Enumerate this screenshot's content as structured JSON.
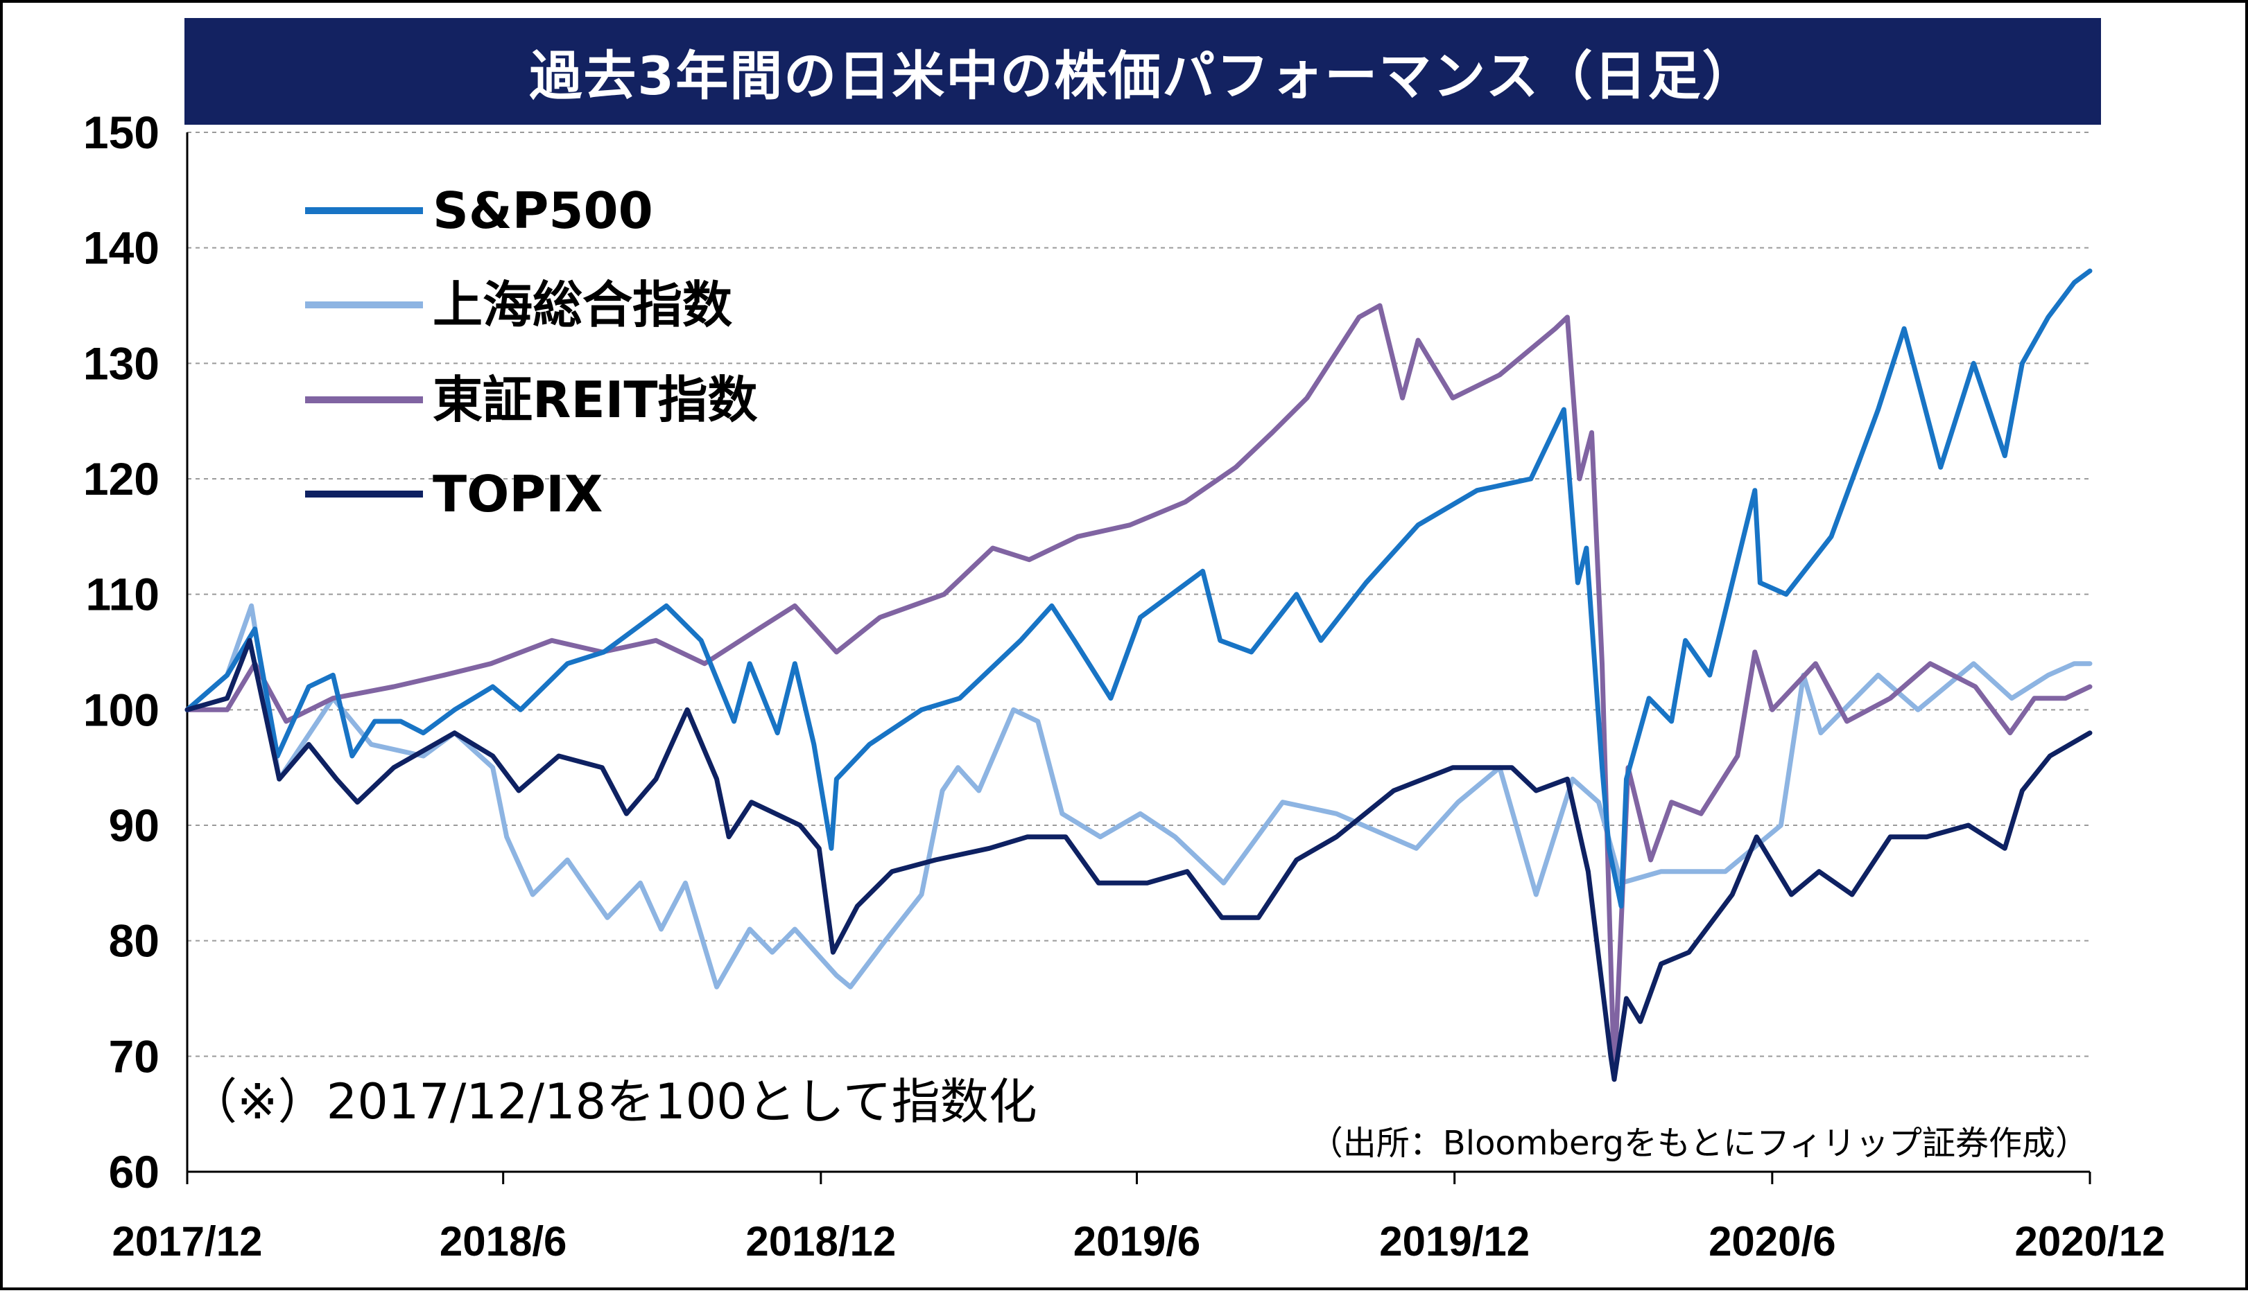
{
  "chart_data": {
    "type": "line",
    "title": "過去3年間の日米中の株価パフォーマンス（日足）",
    "xlabel": "",
    "ylabel": "",
    "x_ticks": [
      "2017/12",
      "2018/6",
      "2018/12",
      "2019/6",
      "2019/12",
      "2020/6",
      "2020/12"
    ],
    "y_ticks": [
      60,
      70,
      80,
      90,
      100,
      110,
      120,
      130,
      140,
      150
    ],
    "xlim": [
      "2017/12/18",
      "2020/12/18"
    ],
    "ylim": [
      60,
      150
    ],
    "grid": true,
    "legend_position": "top-left",
    "note": "（※）2017/12/18を100として指数化",
    "source": "（出所：Bloombergをもとにフィリップ証券作成）",
    "series": [
      {
        "name": "S&P500",
        "color": "#1874C5",
        "points": [
          [
            "2017/12/18",
            100
          ],
          [
            "2018/01/10",
            103
          ],
          [
            "2018/01/26",
            107
          ],
          [
            "2018/02/08",
            96
          ],
          [
            "2018/02/26",
            102
          ],
          [
            "2018/03/12",
            103
          ],
          [
            "2018/03/23",
            96
          ],
          [
            "2018/04/05",
            99
          ],
          [
            "2018/04/20",
            99
          ],
          [
            "2018/05/03",
            98
          ],
          [
            "2018/05/21",
            100
          ],
          [
            "2018/06/12",
            102
          ],
          [
            "2018/06/28",
            100
          ],
          [
            "2018/07/25",
            104
          ],
          [
            "2018/08/15",
            105
          ],
          [
            "2018/09/20",
            109
          ],
          [
            "2018/10/10",
            106
          ],
          [
            "2018/10/29",
            99
          ],
          [
            "2018/11/07",
            104
          ],
          [
            "2018/11/23",
            98
          ],
          [
            "2018/12/03",
            104
          ],
          [
            "2018/12/14",
            97
          ],
          [
            "2018/12/24",
            88
          ],
          [
            "2018/12/27",
            94
          ],
          [
            "2019/01/15",
            97
          ],
          [
            "2019/02/14",
            100
          ],
          [
            "2019/03/08",
            101
          ],
          [
            "2019/04/12",
            106
          ],
          [
            "2019/04/30",
            109
          ],
          [
            "2019/05/13",
            106
          ],
          [
            "2019/06/03",
            101
          ],
          [
            "2019/06/20",
            108
          ],
          [
            "2019/07/26",
            112
          ],
          [
            "2019/08/05",
            106
          ],
          [
            "2019/08/23",
            105
          ],
          [
            "2019/09/18",
            110
          ],
          [
            "2019/10/02",
            106
          ],
          [
            "2019/10/28",
            111
          ],
          [
            "2019/11/27",
            116
          ],
          [
            "2019/12/31",
            119
          ],
          [
            "2020/01/31",
            120
          ],
          [
            "2020/02/19",
            126
          ],
          [
            "2020/02/27",
            111
          ],
          [
            "2020/03/03",
            114
          ],
          [
            "2020/03/12",
            95
          ],
          [
            "2020/03/16",
            88
          ],
          [
            "2020/03/23",
            83
          ],
          [
            "2020/03/26",
            94
          ],
          [
            "2020/04/08",
            101
          ],
          [
            "2020/04/21",
            99
          ],
          [
            "2020/04/29",
            106
          ],
          [
            "2020/05/13",
            103
          ],
          [
            "2020/06/08",
            119
          ],
          [
            "2020/06/11",
            111
          ],
          [
            "2020/06/26",
            110
          ],
          [
            "2020/07/22",
            115
          ],
          [
            "2020/08/18",
            126
          ],
          [
            "2020/09/02",
            133
          ],
          [
            "2020/09/23",
            121
          ],
          [
            "2020/10/12",
            130
          ],
          [
            "2020/10/30",
            122
          ],
          [
            "2020/11/09",
            130
          ],
          [
            "2020/11/24",
            134
          ],
          [
            "2020/12/09",
            137
          ],
          [
            "2020/12/18",
            138
          ]
        ]
      },
      {
        "name": "上海総合指数",
        "color": "#8DB4E2",
        "points": [
          [
            "2017/12/18",
            100
          ],
          [
            "2018/01/10",
            103
          ],
          [
            "2018/01/24",
            109
          ],
          [
            "2018/02/09",
            94
          ],
          [
            "2018/03/12",
            101
          ],
          [
            "2018/04/03",
            97
          ],
          [
            "2018/05/03",
            96
          ],
          [
            "2018/05/21",
            98
          ],
          [
            "2018/06/12",
            95
          ],
          [
            "2018/06/20",
            89
          ],
          [
            "2018/07/05",
            84
          ],
          [
            "2018/07/25",
            87
          ],
          [
            "2018/08/17",
            82
          ],
          [
            "2018/09/05",
            85
          ],
          [
            "2018/09/17",
            81
          ],
          [
            "2018/10/01",
            85
          ],
          [
            "2018/10/19",
            76
          ],
          [
            "2018/11/07",
            81
          ],
          [
            "2018/11/20",
            79
          ],
          [
            "2018/12/03",
            81
          ],
          [
            "2018/12/27",
            77
          ],
          [
            "2019/01/04",
            76
          ],
          [
            "2019/01/24",
            80
          ],
          [
            "2019/02/14",
            84
          ],
          [
            "2019/02/26",
            93
          ],
          [
            "2019/03/07",
            95
          ],
          [
            "2019/03/19",
            93
          ],
          [
            "2019/04/08",
            100
          ],
          [
            "2019/04/22",
            99
          ],
          [
            "2019/05/06",
            91
          ],
          [
            "2019/05/28",
            89
          ],
          [
            "2019/06/20",
            91
          ],
          [
            "2019/07/10",
            89
          ],
          [
            "2019/08/07",
            85
          ],
          [
            "2019/09/10",
            92
          ],
          [
            "2019/10/11",
            91
          ],
          [
            "2019/11/26",
            88
          ],
          [
            "2019/12/20",
            92
          ],
          [
            "2020/01/13",
            95
          ],
          [
            "2020/02/03",
            84
          ],
          [
            "2020/02/24",
            94
          ],
          [
            "2020/03/10",
            92
          ],
          [
            "2020/03/23",
            85
          ],
          [
            "2020/04/15",
            86
          ],
          [
            "2020/05/22",
            86
          ],
          [
            "2020/06/23",
            90
          ],
          [
            "2020/07/06",
            103
          ],
          [
            "2020/07/16",
            98
          ],
          [
            "2020/08/18",
            103
          ],
          [
            "2020/09/10",
            100
          ],
          [
            "2020/10/12",
            104
          ],
          [
            "2020/11/03",
            101
          ],
          [
            "2020/11/24",
            103
          ],
          [
            "2020/12/09",
            104
          ],
          [
            "2020/12/18",
            104
          ]
        ]
      },
      {
        "name": "東証REIT指数",
        "color": "#8064A2",
        "points": [
          [
            "2017/12/18",
            100
          ],
          [
            "2018/01/10",
            100
          ],
          [
            "2018/01/26",
            104
          ],
          [
            "2018/02/13",
            99
          ],
          [
            "2018/03/12",
            101
          ],
          [
            "2018/04/16",
            102
          ],
          [
            "2018/05/15",
            103
          ],
          [
            "2018/06/11",
            104
          ],
          [
            "2018/07/16",
            106
          ],
          [
            "2018/08/14",
            105
          ],
          [
            "2018/09/14",
            106
          ],
          [
            "2018/10/12",
            104
          ],
          [
            "2018/11/12",
            107
          ],
          [
            "2018/12/03",
            109
          ],
          [
            "2018/12/27",
            105
          ],
          [
            "2019/01/21",
            108
          ],
          [
            "2019/02/27",
            110
          ],
          [
            "2019/03/27",
            114
          ],
          [
            "2019/04/17",
            113
          ],
          [
            "2019/05/15",
            115
          ],
          [
            "2019/06/14",
            116
          ],
          [
            "2019/07/16",
            118
          ],
          [
            "2019/08/14",
            121
          ],
          [
            "2019/09/04",
            124
          ],
          [
            "2019/09/24",
            127
          ],
          [
            "2019/10/24",
            134
          ],
          [
            "2019/11/05",
            135
          ],
          [
            "2019/11/18",
            127
          ],
          [
            "2019/11/27",
            132
          ],
          [
            "2019/12/17",
            127
          ],
          [
            "2020/01/13",
            129
          ],
          [
            "2020/02/14",
            133
          ],
          [
            "2020/02/21",
            134
          ],
          [
            "2020/02/28",
            120
          ],
          [
            "2020/03/06",
            124
          ],
          [
            "2020/03/12",
            104
          ],
          [
            "2020/03/19",
            68
          ],
          [
            "2020/03/27",
            95
          ],
          [
            "2020/04/09",
            87
          ],
          [
            "2020/04/21",
            92
          ],
          [
            "2020/05/08",
            91
          ],
          [
            "2020/05/29",
            96
          ],
          [
            "2020/06/08",
            105
          ],
          [
            "2020/06/18",
            100
          ],
          [
            "2020/07/13",
            104
          ],
          [
            "2020/07/31",
            99
          ],
          [
            "2020/08/25",
            101
          ],
          [
            "2020/09/17",
            104
          ],
          [
            "2020/10/13",
            102
          ],
          [
            "2020/11/02",
            98
          ],
          [
            "2020/11/16",
            101
          ],
          [
            "2020/12/04",
            101
          ],
          [
            "2020/12/18",
            102
          ]
        ]
      },
      {
        "name": "TOPIX",
        "color": "#0E2162",
        "points": [
          [
            "2017/12/18",
            100
          ],
          [
            "2018/01/10",
            101
          ],
          [
            "2018/01/23",
            106
          ],
          [
            "2018/02/09",
            94
          ],
          [
            "2018/02/26",
            97
          ],
          [
            "2018/03/14",
            94
          ],
          [
            "2018/03/26",
            92
          ],
          [
            "2018/04/16",
            95
          ],
          [
            "2018/05/21",
            98
          ],
          [
            "2018/06/12",
            96
          ],
          [
            "2018/06/27",
            93
          ],
          [
            "2018/07/20",
            96
          ],
          [
            "2018/08/14",
            95
          ],
          [
            "2018/08/28",
            91
          ],
          [
            "2018/09/14",
            94
          ],
          [
            "2018/10/02",
            100
          ],
          [
            "2018/10/19",
            94
          ],
          [
            "2018/10/26",
            89
          ],
          [
            "2018/11/08",
            92
          ],
          [
            "2018/11/22",
            91
          ],
          [
            "2018/12/06",
            90
          ],
          [
            "2018/12/17",
            88
          ],
          [
            "2018/12/25",
            79
          ],
          [
            "2019/01/08",
            83
          ],
          [
            "2019/01/28",
            86
          ],
          [
            "2019/02/22",
            87
          ],
          [
            "2019/03/25",
            88
          ],
          [
            "2019/04/16",
            89
          ],
          [
            "2019/05/08",
            89
          ],
          [
            "2019/05/27",
            85
          ],
          [
            "2019/06/24",
            85
          ],
          [
            "2019/07/17",
            86
          ],
          [
            "2019/08/06",
            82
          ],
          [
            "2019/08/27",
            82
          ],
          [
            "2019/09/18",
            87
          ],
          [
            "2019/10/11",
            89
          ],
          [
            "2019/11/13",
            93
          ],
          [
            "2019/12/17",
            95
          ],
          [
            "2020/01/20",
            95
          ],
          [
            "2020/02/03",
            93
          ],
          [
            "2020/02/21",
            94
          ],
          [
            "2020/03/04",
            86
          ],
          [
            "2020/03/17",
            70
          ],
          [
            "2020/03/19",
            68
          ],
          [
            "2020/03/26",
            75
          ],
          [
            "2020/04/03",
            73
          ],
          [
            "2020/04/15",
            78
          ],
          [
            "2020/05/01",
            79
          ],
          [
            "2020/05/26",
            84
          ],
          [
            "2020/06/09",
            89
          ],
          [
            "2020/06/29",
            84
          ],
          [
            "2020/07/15",
            86
          ],
          [
            "2020/08/03",
            84
          ],
          [
            "2020/08/25",
            89
          ],
          [
            "2020/09/15",
            89
          ],
          [
            "2020/10/09",
            90
          ],
          [
            "2020/10/30",
            88
          ],
          [
            "2020/11/09",
            93
          ],
          [
            "2020/11/25",
            96
          ],
          [
            "2020/12/18",
            98
          ]
        ]
      }
    ]
  }
}
